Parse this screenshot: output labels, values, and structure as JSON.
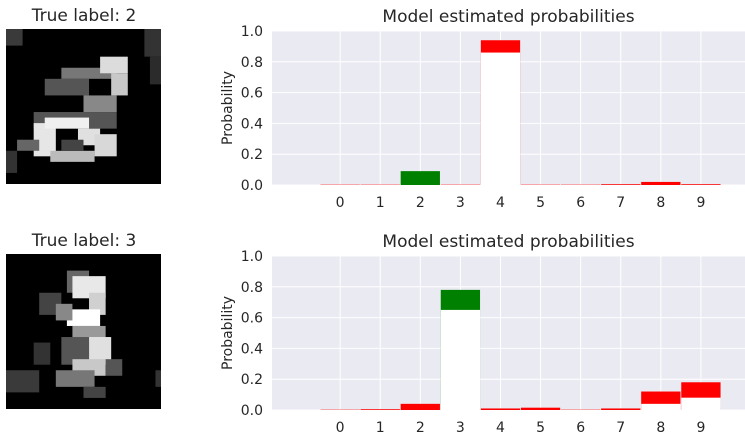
{
  "panels": [
    {
      "true_label_text": "True label: 2",
      "chart_data": {
        "type": "bar",
        "title": "Model estimated probabilities",
        "ylabel": "Probability",
        "xlabel": "",
        "categories": [
          "0",
          "1",
          "2",
          "3",
          "4",
          "5",
          "6",
          "7",
          "8",
          "9"
        ],
        "ylim": [
          0,
          1.0
        ],
        "yticks": [
          "0.0",
          "0.2",
          "0.4",
          "0.6",
          "0.8",
          "1.0"
        ],
        "grid": true,
        "series": [
          {
            "values": [
              0.002,
              0.002,
              0.09,
              0.002,
              0.94,
              0.002,
              0.002,
              0.005,
              0.02,
              0.005
            ]
          },
          {
            "values": [
              0.0,
              0.0,
              0.0,
              0.0,
              0.86,
              0.0,
              0.0,
              0.0,
              0.0,
              0.0
            ]
          }
        ],
        "highlight": {
          "true_index": 2,
          "true_color": "#008000",
          "other_color": "#ff0000",
          "overlay_color": "#ffffff"
        }
      }
    },
    {
      "true_label_text": "True label: 3",
      "chart_data": {
        "type": "bar",
        "title": "Model estimated probabilities",
        "ylabel": "Probability",
        "xlabel": "",
        "categories": [
          "0",
          "1",
          "2",
          "3",
          "4",
          "5",
          "6",
          "7",
          "8",
          "9"
        ],
        "ylim": [
          0,
          1.0
        ],
        "yticks": [
          "0.0",
          "0.2",
          "0.4",
          "0.6",
          "0.8",
          "1.0"
        ],
        "grid": true,
        "series": [
          {
            "values": [
              0.002,
              0.005,
              0.04,
              0.78,
              0.01,
              0.015,
              0.002,
              0.01,
              0.12,
              0.18
            ]
          },
          {
            "values": [
              0.0,
              0.0,
              0.0,
              0.65,
              0.0,
              0.0,
              0.0,
              0.0,
              0.04,
              0.08
            ]
          }
        ],
        "highlight": {
          "true_index": 3,
          "true_color": "#008000",
          "other_color": "#ff0000",
          "overlay_color": "#ffffff"
        }
      }
    }
  ]
}
